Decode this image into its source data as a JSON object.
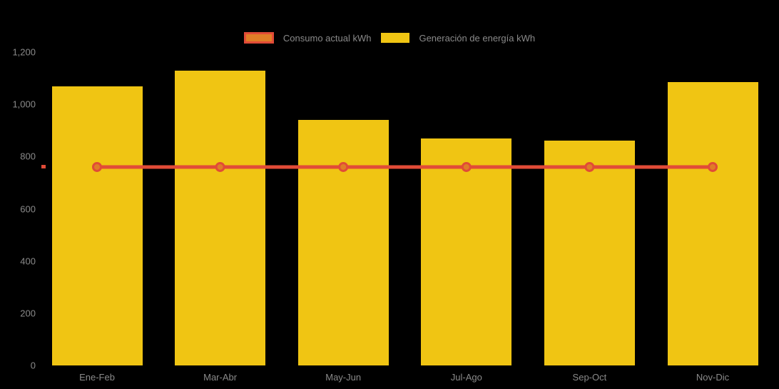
{
  "chart_data": {
    "type": "bar",
    "title": "",
    "xlabel": "",
    "ylabel": "",
    "categories": [
      "Ene-Feb",
      "Mar-Abr",
      "May-Jun",
      "Jul-Ago",
      "Sep-Oct",
      "Nov-Dic"
    ],
    "series": [
      {
        "name": "Consumo actual kWh",
        "type": "line",
        "color": "#E14B37",
        "marker_fill": "#E07D27",
        "values": [
          760,
          760,
          760,
          760,
          760,
          760
        ]
      },
      {
        "name": "Generación de energía kWh",
        "type": "bar",
        "color": "#F0C513",
        "values": [
          1070,
          1130,
          940,
          870,
          860,
          1085
        ]
      }
    ],
    "ylim": [
      0,
      1200
    ],
    "yticks": [
      {
        "value": 0,
        "label": "0"
      },
      {
        "value": 200,
        "label": "200"
      },
      {
        "value": 400,
        "label": "400"
      },
      {
        "value": 600,
        "label": "600"
      },
      {
        "value": 800,
        "label": "800"
      },
      {
        "value": 1000,
        "label": "1,000"
      },
      {
        "value": 1200,
        "label": "1,200"
      }
    ],
    "legend_position": "top",
    "grid": false,
    "background": "#000000",
    "text_color": "#8A8A8A"
  }
}
